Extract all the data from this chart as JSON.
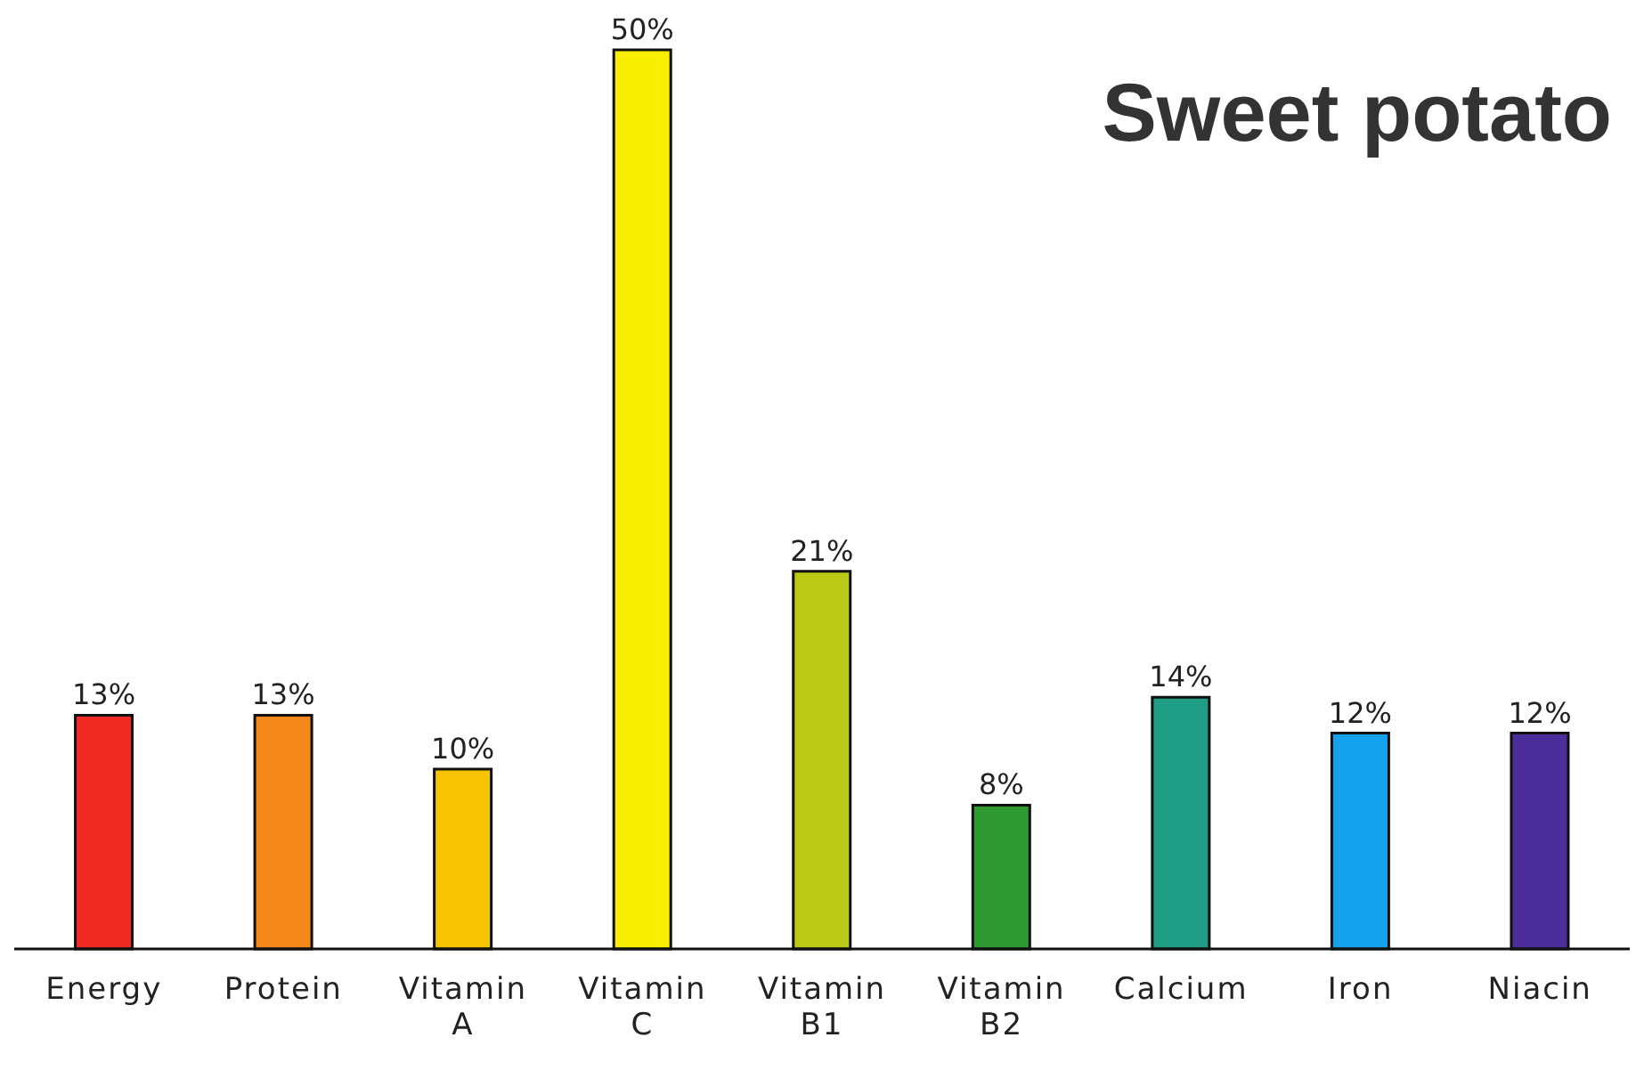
{
  "chart_data": {
    "type": "bar",
    "title": "Sweet potato",
    "categories": [
      "Energy",
      "Protein",
      "Vitamin A",
      "Vitamin C",
      "Vitamin B1",
      "Vitamin B2",
      "Calcium",
      "Iron",
      "Niacin"
    ],
    "values": [
      13,
      13,
      10,
      50,
      21,
      8,
      14,
      12,
      12
    ],
    "colors": [
      "#f02a22",
      "#f7891c",
      "#f6c400",
      "#f8f000",
      "#b9c914",
      "#2f9a32",
      "#1f9c84",
      "#14a2ee",
      "#4b2e99"
    ],
    "value_labels": [
      "13%",
      "13%",
      "10%",
      "50%",
      "21%",
      "8%",
      "14%",
      "12%",
      "12%"
    ],
    "grid": false,
    "legend": false
  }
}
